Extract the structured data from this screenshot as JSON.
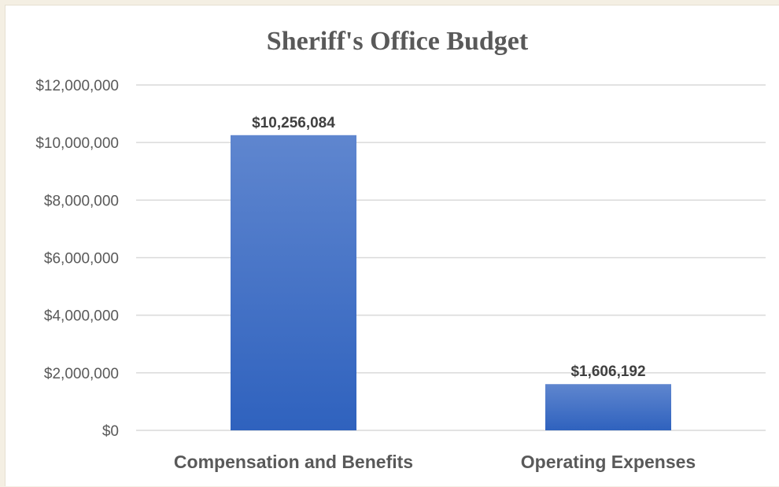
{
  "chart_data": {
    "type": "bar",
    "title": "Sheriff's Office Budget",
    "categories": [
      "Compensation and Benefits",
      "Operating Expenses"
    ],
    "values": [
      10256084,
      1606192
    ],
    "data_labels": [
      "$10,256,084",
      "$1,606,192"
    ],
    "ylim": [
      0,
      12000000
    ],
    "yticks": [
      0,
      2000000,
      4000000,
      6000000,
      8000000,
      10000000,
      12000000
    ],
    "ytick_labels": [
      "$0",
      "$2,000,000",
      "$4,000,000",
      "$6,000,000",
      "$8,000,000",
      "$10,000,000",
      "$12,000,000"
    ],
    "grid": true,
    "legend": "none",
    "colors": {
      "bar_top": "#5f86cf",
      "bar_bottom": "#2f62be",
      "grid": "#d9d9d9",
      "text": "#595959"
    }
  }
}
